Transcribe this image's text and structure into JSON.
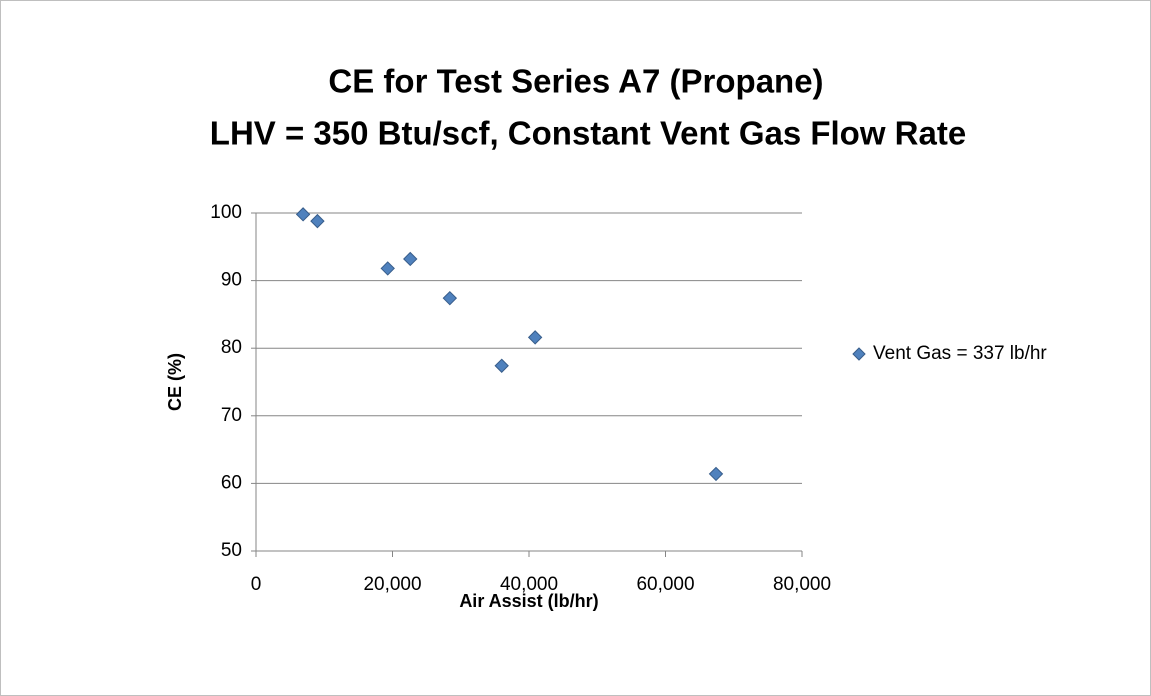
{
  "chart_data": {
    "type": "scatter",
    "title": [
      "CE for Test Series A7 (Propane)",
      "LHV = 350 Btu/scf, Constant Vent Gas Flow Rate"
    ],
    "xlabel": "Air Assist (lb/hr)",
    "ylabel": "CE (%)",
    "series": [
      {
        "name": "Vent Gas = 337 lb/hr",
        "color": "#4f81bd",
        "x": [
          6900,
          9000,
          19300,
          22600,
          28400,
          36000,
          40900,
          67400
        ],
        "values": [
          99.8,
          98.8,
          91.8,
          93.2,
          87.4,
          77.4,
          81.6,
          61.4
        ]
      }
    ],
    "xlim": [
      0,
      80000
    ],
    "xticks": [
      0,
      {
        "value": 20000,
        "label": "20,000"
      },
      {
        "value": 40000,
        "label": "40,000"
      },
      {
        "value": 60000,
        "label": "60,000"
      },
      {
        "value": 80000,
        "label": "80,000"
      }
    ],
    "ylim": [
      50,
      100
    ],
    "yticks": [
      50,
      60,
      70,
      80,
      90,
      100
    ],
    "grid": true,
    "legend": "right"
  }
}
